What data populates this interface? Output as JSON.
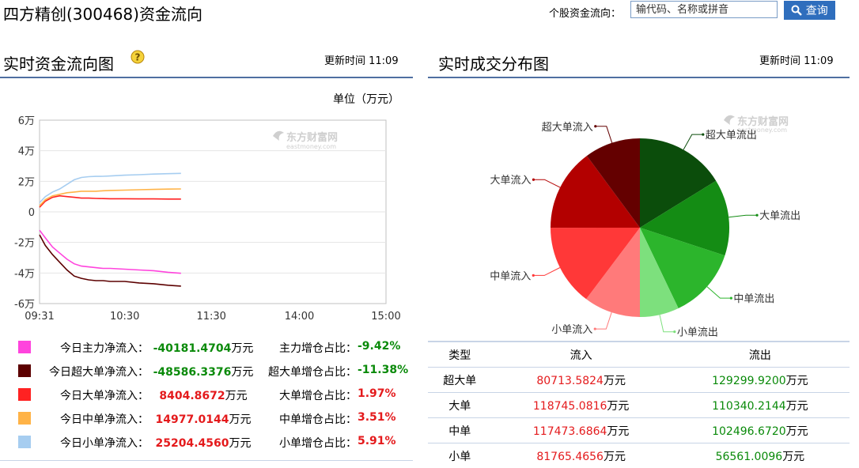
{
  "header": {
    "title": "四方精创(300468)资金流向",
    "search_label": "个股资金流向：",
    "search_placeholder": "输代码、名称或拼音",
    "search_button": "查询"
  },
  "left_panel": {
    "title": "实时资金流向图",
    "help_icon": "question-icon",
    "update_time": "更新时间 11:09",
    "unit": "单位（万元）",
    "watermark": "东方财富网",
    "watermark_sub": "eastmoney.com"
  },
  "right_panel": {
    "title": "实时成交分布图",
    "update_time": "更新时间 11:09",
    "watermark": "东方财富网",
    "watermark_sub": "eastmoney.com"
  },
  "legend": [
    {
      "label": "今日主力净流入：",
      "value": "-40181.4704",
      "unit": "万元",
      "ratio_label": "主力增仓占比：",
      "ratio": "-9.42%",
      "color": "#ff44dd",
      "sign": "neg"
    },
    {
      "label": "今日超大单净流入：",
      "value": "-48586.3376",
      "unit": "万元",
      "ratio_label": "超大单增仓占比：",
      "ratio": "-11.38%",
      "color": "#5c0000",
      "sign": "neg"
    },
    {
      "label": "今日大单净流入：",
      "value": "8404.8672",
      "unit": "万元",
      "ratio_label": "大单增仓占比：",
      "ratio": "1.97%",
      "color": "#ff2222",
      "sign": "pos"
    },
    {
      "label": "今日中单净流入：",
      "value": "14977.0144",
      "unit": "万元",
      "ratio_label": "中单增仓占比：",
      "ratio": "3.51%",
      "color": "#ffb347",
      "sign": "pos"
    },
    {
      "label": "今日小单净流入：",
      "value": "25204.4560",
      "unit": "万元",
      "ratio_label": "小单增仓占比：",
      "ratio": "5.91%",
      "color": "#a6cdf0",
      "sign": "pos"
    }
  ],
  "table": {
    "headers": [
      "类型",
      "流入",
      "流出"
    ],
    "rows": [
      {
        "type": "超大单",
        "in": "80713.5824",
        "out": "129299.9200",
        "unit": "万元"
      },
      {
        "type": "大单",
        "in": "118745.0816",
        "out": "110340.2144",
        "unit": "万元"
      },
      {
        "type": "中单",
        "in": "117473.6864",
        "out": "102496.6720",
        "unit": "万元"
      },
      {
        "type": "小单",
        "in": "81765.4656",
        "out": "56561.0096",
        "unit": "万元"
      }
    ]
  },
  "chart_data": [
    {
      "type": "line",
      "title": "",
      "xlabel": "",
      "ylabel": "",
      "x_ticks": [
        "09:31",
        "10:30",
        "11:30",
        "14:00",
        "15:00"
      ],
      "y_ticks": [
        "6万",
        "4万",
        "2万",
        "0",
        "-2万",
        "-4万",
        "-6万"
      ],
      "ylim": [
        -60000,
        60000
      ],
      "grid": true,
      "x_points": [
        "09:31",
        "09:35",
        "09:40",
        "09:45",
        "09:50",
        "09:55",
        "10:00",
        "10:05",
        "10:10",
        "10:15",
        "10:20",
        "10:30",
        "10:40",
        "10:50",
        "11:00",
        "11:09"
      ],
      "series": [
        {
          "key": "main",
          "color": "#ff44dd",
          "values": [
            -12000,
            -17000,
            -23000,
            -27000,
            -31000,
            -34000,
            -35500,
            -36000,
            -36500,
            -37000,
            -37000,
            -37500,
            -38000,
            -38500,
            -39500,
            -40181
          ]
        },
        {
          "key": "super",
          "color": "#5c0000",
          "values": [
            -15000,
            -22000,
            -28000,
            -33000,
            -38000,
            -42000,
            -43500,
            -44500,
            -45000,
            -45000,
            -45500,
            -45500,
            -46500,
            -47000,
            -48000,
            -48586
          ]
        },
        {
          "key": "large",
          "color": "#ff2222",
          "values": [
            3000,
            7000,
            9500,
            10500,
            10000,
            9500,
            9000,
            9000,
            8800,
            8700,
            8600,
            8600,
            8500,
            8500,
            8400,
            8405
          ]
        },
        {
          "key": "medium",
          "color": "#ffb347",
          "values": [
            4000,
            8000,
            10500,
            11500,
            12500,
            13000,
            13500,
            13500,
            13500,
            13800,
            14000,
            14200,
            14500,
            14700,
            14900,
            14977
          ]
        },
        {
          "key": "small",
          "color": "#a6cdf0",
          "values": [
            6000,
            10000,
            13000,
            15000,
            18000,
            21000,
            22500,
            23000,
            23200,
            23300,
            23500,
            24000,
            24300,
            24700,
            25000,
            25204
          ]
        }
      ]
    },
    {
      "type": "pie",
      "title": "",
      "slices": [
        {
          "label": "超大单流出",
          "value": 129299.92,
          "color": "#0b4d0b"
        },
        {
          "label": "大单流出",
          "value": 110340.2144,
          "color": "#148c14"
        },
        {
          "label": "中单流出",
          "value": 102496.672,
          "color": "#2cb52c"
        },
        {
          "label": "小单流出",
          "value": 56561.0096,
          "color": "#7de07d"
        },
        {
          "label": "小单流入",
          "value": 81765.4656,
          "color": "#ff7a7a"
        },
        {
          "label": "中单流入",
          "value": 117473.6864,
          "color": "#ff3838"
        },
        {
          "label": "大单流入",
          "value": 118745.0816,
          "color": "#b30000"
        },
        {
          "label": "超大单流入",
          "value": 80713.5824,
          "color": "#640000"
        }
      ]
    }
  ]
}
